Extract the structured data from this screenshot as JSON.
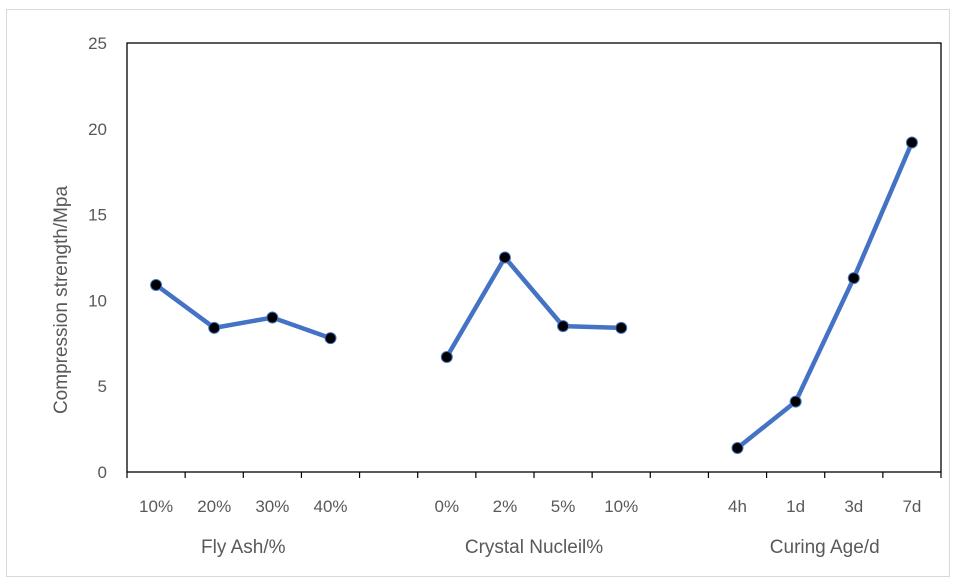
{
  "chart_data": {
    "type": "line",
    "title": "",
    "ylabel": "Compression strength/Mpa",
    "ylim": [
      0,
      25
    ],
    "yticks": [
      0,
      5,
      10,
      15,
      20,
      25
    ],
    "grid": false,
    "legend": "none",
    "line_color": "#4472C4",
    "marker_color": "#000000",
    "categories": [
      "10%",
      "20%",
      "30%",
      "40%",
      "",
      "0%",
      "2%",
      "5%",
      "10%",
      "",
      "4h",
      "1d",
      "3d",
      "7d"
    ],
    "groups": [
      {
        "label": "Fly Ash/%",
        "categories": [
          "10%",
          "20%",
          "30%",
          "40%"
        ],
        "values": [
          10.9,
          8.4,
          9.0,
          7.8
        ]
      },
      {
        "label": "Crystal Nucleil%",
        "categories": [
          "0%",
          "2%",
          "5%",
          "10%"
        ],
        "values": [
          6.7,
          12.5,
          8.5,
          8.4
        ]
      },
      {
        "label": "Curing Age/d",
        "categories": [
          "4h",
          "1d",
          "3d",
          "7d"
        ],
        "values": [
          1.4,
          4.1,
          11.3,
          19.2
        ]
      }
    ]
  }
}
